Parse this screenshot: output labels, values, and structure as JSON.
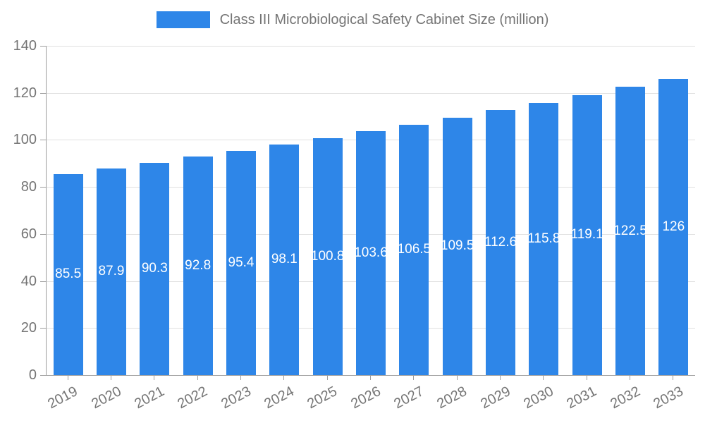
{
  "chart_data": {
    "type": "bar",
    "title": "Class III Microbiological Safety Cabinet Size (million)",
    "categories": [
      "2019",
      "2020",
      "2021",
      "2022",
      "2023",
      "2024",
      "2025",
      "2026",
      "2027",
      "2028",
      "2029",
      "2030",
      "2031",
      "2032",
      "2033"
    ],
    "values": [
      85.5,
      87.9,
      90.3,
      92.8,
      95.4,
      98.1,
      100.8,
      103.6,
      106.5,
      109.5,
      112.6,
      115.8,
      119.1,
      122.5,
      126
    ],
    "value_labels": [
      "85.5",
      "87.9",
      "90.3",
      "92.8",
      "95.4",
      "98.1",
      "100.8",
      "103.6",
      "106.5",
      "109.5",
      "112.6",
      "115.8",
      "119.1",
      "122.5",
      "126"
    ],
    "xlabel": "",
    "ylabel": "",
    "ylim": [
      0,
      140
    ],
    "yticks": [
      0,
      20,
      40,
      60,
      80,
      100,
      120,
      140
    ],
    "grid": true,
    "legend_position": "top",
    "bar_color": "#2E86E8",
    "value_label_color": "#ffffff"
  },
  "style": {
    "axis_text_color": "#757575",
    "grid_line_color": "#e0e0e0",
    "axis_line_color": "#9e9e9e",
    "background_color": "#ffffff"
  }
}
